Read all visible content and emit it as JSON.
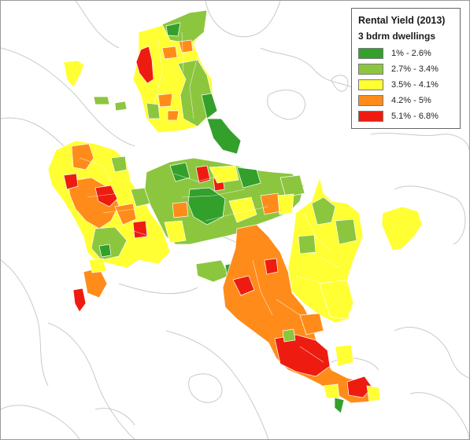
{
  "legend": {
    "title": "Rental Yield (2013)",
    "subtitle": "3 bdrm dwellings",
    "items": [
      {
        "label": "1% - 2.6%",
        "color": "#33a02c"
      },
      {
        "label": "2.7% - 3.4%",
        "color": "#8cc63f"
      },
      {
        "label": "3.5% - 4.1%",
        "color": "#ffff33"
      },
      {
        "label": "4.2% - 5%",
        "color": "#ff8c1a"
      },
      {
        "label": "5.1% - 6.8%",
        "color": "#ee1c10"
      }
    ]
  },
  "colors": {
    "coastline": "#c9c9c9",
    "background": "#ffffff",
    "frame": "#9a9a9a"
  }
}
